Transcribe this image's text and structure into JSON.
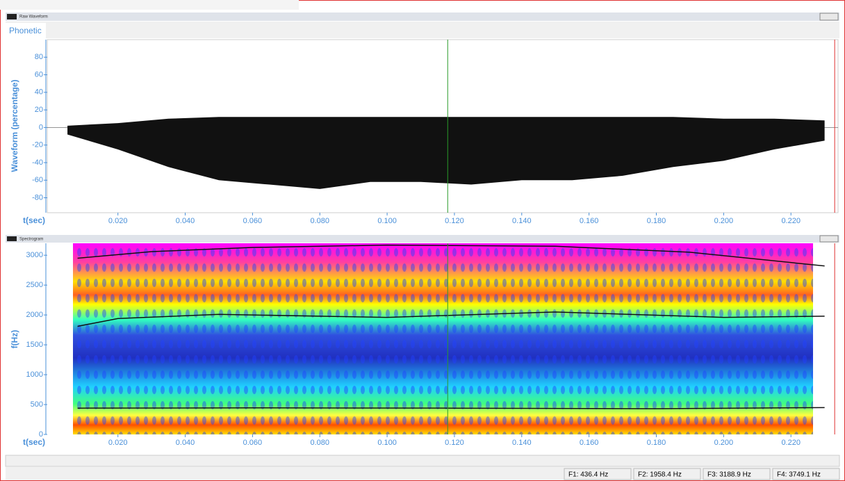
{
  "top_window": {
    "title": "Raw Waveform",
    "tab": "Phonetic",
    "y_label": "Waveform (percentage)",
    "x_label": "t(sec)",
    "xlim": [
      -0.001,
      0.234
    ],
    "ylim": [
      -97,
      100
    ],
    "yticks": [
      -80,
      -60,
      -40,
      -20,
      0,
      20,
      40,
      60,
      80
    ],
    "xticks": [
      {
        "value": 0.02,
        "label": "0.020"
      },
      {
        "value": 0.04,
        "label": "0.040"
      },
      {
        "value": 0.06,
        "label": "0.060"
      },
      {
        "value": 0.08,
        "label": "0.080"
      },
      {
        "value": 0.1,
        "label": "0.100"
      },
      {
        "value": 0.12,
        "label": "0.120"
      },
      {
        "value": 0.14,
        "label": "0.140"
      },
      {
        "value": 0.16,
        "label": "0.160"
      },
      {
        "value": 0.18,
        "label": "0.180"
      },
      {
        "value": 0.2,
        "label": "0.200"
      },
      {
        "value": 0.22,
        "label": "0.220"
      }
    ],
    "cursor": 0.118,
    "end_marker": 0.233,
    "envelope": {
      "x": [
        0.005,
        0.02,
        0.035,
        0.05,
        0.065,
        0.08,
        0.095,
        0.11,
        0.125,
        0.14,
        0.155,
        0.17,
        0.185,
        0.2,
        0.215,
        0.23
      ],
      "max": [
        2,
        5,
        10,
        12,
        12,
        12,
        12,
        12,
        12,
        12,
        12,
        12,
        12,
        10,
        10,
        8
      ],
      "min": [
        -8,
        -25,
        -45,
        -60,
        -65,
        -70,
        -62,
        -62,
        -65,
        -60,
        -60,
        -55,
        -45,
        -38,
        -25,
        -15
      ]
    }
  },
  "bottom_window": {
    "title": "Spectrogram",
    "y_label": "f(Hz)",
    "x_label": "t(sec)",
    "xlim": [
      -0.001,
      0.234
    ],
    "ylim": [
      0,
      3200
    ],
    "yticks": [
      0,
      500,
      1000,
      1500,
      2000,
      2500,
      3000
    ],
    "xticks": [
      {
        "value": 0.02,
        "label": "0.020"
      },
      {
        "value": 0.04,
        "label": "0.040"
      },
      {
        "value": 0.06,
        "label": "0.060"
      },
      {
        "value": 0.08,
        "label": "0.080"
      },
      {
        "value": 0.1,
        "label": "0.100"
      },
      {
        "value": 0.12,
        "label": "0.120"
      },
      {
        "value": 0.14,
        "label": "0.140"
      },
      {
        "value": 0.16,
        "label": "0.160"
      },
      {
        "value": 0.18,
        "label": "0.180"
      },
      {
        "value": 0.2,
        "label": "0.200"
      },
      {
        "value": 0.22,
        "label": "0.220"
      }
    ],
    "cursor": 0.118,
    "end_marker": 0.233,
    "formants": [
      {
        "x": [
          0.008,
          0.06,
          0.12,
          0.18,
          0.23
        ],
        "values": [
          440,
          445,
          440,
          430,
          450
        ]
      },
      {
        "x": [
          0.008,
          0.02,
          0.05,
          0.1,
          0.15,
          0.2,
          0.23
        ],
        "values": [
          1810,
          1940,
          2010,
          1960,
          2050,
          1960,
          1980
        ]
      },
      {
        "x": [
          0.008,
          0.03,
          0.06,
          0.1,
          0.15,
          0.19,
          0.23
        ],
        "values": [
          2950,
          3060,
          3130,
          3170,
          3150,
          3050,
          2820
        ]
      }
    ]
  },
  "status": [
    "F1: 436.4 Hz",
    "F2: 1958.4 Hz",
    "F3: 3188.9 Hz",
    "F4: 3749.1 Hz"
  ]
}
